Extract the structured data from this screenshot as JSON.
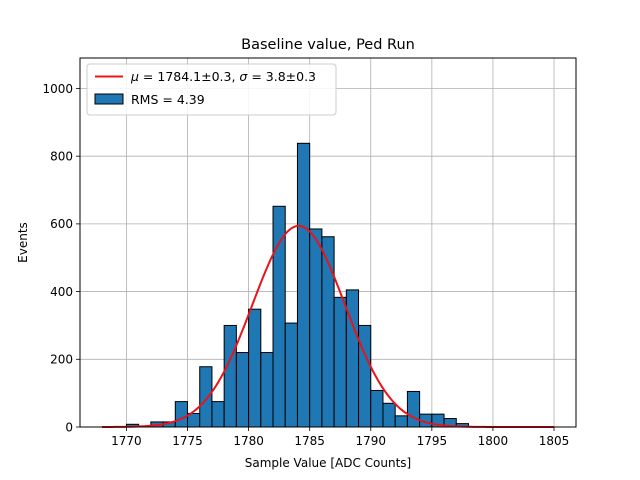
{
  "chart_data": {
    "type": "bar",
    "title": "Baseline value, Ped Run",
    "xlabel": "Sample Value [ADC Counts]",
    "ylabel": "Events",
    "xlim": [
      1766.2,
      1806.8
    ],
    "ylim": [
      0,
      1090
    ],
    "xticks": [
      1770,
      1775,
      1780,
      1785,
      1790,
      1795,
      1800,
      1805
    ],
    "yticks": [
      0,
      200,
      400,
      600,
      800,
      1000
    ],
    "grid": true,
    "histogram": {
      "name": "RMS = 4.39",
      "bin_width": 1,
      "bins": [
        {
          "x0": 1770,
          "count": 8
        },
        {
          "x0": 1771,
          "count": 3
        },
        {
          "x0": 1772,
          "count": 15
        },
        {
          "x0": 1773,
          "count": 15
        },
        {
          "x0": 1774,
          "count": 75
        },
        {
          "x0": 1775,
          "count": 40
        },
        {
          "x0": 1776,
          "count": 178
        },
        {
          "x0": 1777,
          "count": 75
        },
        {
          "x0": 1778,
          "count": 300
        },
        {
          "x0": 1779,
          "count": 220
        },
        {
          "x0": 1780,
          "count": 348
        },
        {
          "x0": 1781,
          "count": 220
        },
        {
          "x0": 1782,
          "count": 652
        },
        {
          "x0": 1783,
          "count": 307
        },
        {
          "x0": 1784,
          "count": 838
        },
        {
          "x0": 1785,
          "count": 585
        },
        {
          "x0": 1786,
          "count": 562
        },
        {
          "x0": 1787,
          "count": 383
        },
        {
          "x0": 1788,
          "count": 405
        },
        {
          "x0": 1789,
          "count": 300
        },
        {
          "x0": 1790,
          "count": 108
        },
        {
          "x0": 1791,
          "count": 70
        },
        {
          "x0": 1792,
          "count": 33
        },
        {
          "x0": 1793,
          "count": 105
        },
        {
          "x0": 1794,
          "count": 38
        },
        {
          "x0": 1795,
          "count": 38
        },
        {
          "x0": 1796,
          "count": 25
        },
        {
          "x0": 1797,
          "count": 10
        }
      ]
    },
    "fit": {
      "name": "μ = 1784.1±0.3, σ = 3.8±0.3",
      "mu_label": "μ",
      "mu_text": " = 1784.1±0.3, ",
      "sigma_label": "σ",
      "sigma_text": " = 3.8±0.3",
      "mu": 1784.1,
      "sigma": 3.8,
      "amplitude": 594,
      "x_range": [
        1768,
        1805
      ]
    },
    "legend": {
      "location": "upper-left",
      "entries": [
        "μ = 1784.1±0.3, σ = 3.8±0.3",
        "RMS = 4.39"
      ]
    },
    "colors": {
      "bar_fill": "#1f77b4",
      "bar_edge": "#000000",
      "fit_line": "#e8141c"
    }
  }
}
